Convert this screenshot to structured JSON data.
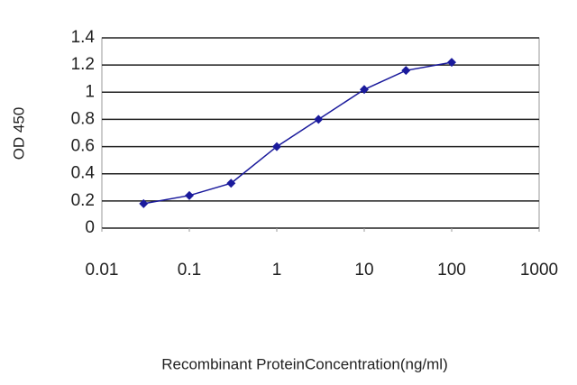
{
  "chart_data": {
    "type": "line",
    "x_label": "Recombinant ProteinConcentration(ng/ml)",
    "y_label": "OD 450",
    "xscale": "log",
    "grid": true,
    "x": [
      0.03,
      0.1,
      0.3,
      1,
      3,
      10,
      30,
      100
    ],
    "series": [
      {
        "color": "#1a1a9c",
        "values": [
          0.18,
          0.24,
          0.33,
          0.6,
          0.8,
          1.02,
          1.16,
          1.22
        ]
      }
    ],
    "xlim": [
      0.01,
      1000
    ],
    "xticks": [
      0.01,
      0.1,
      1,
      10,
      100,
      1000
    ],
    "ylim": [
      0,
      1.4
    ],
    "yticks": [
      0,
      0.2,
      0.4,
      0.6,
      0.8,
      1,
      1.2,
      1.4
    ]
  }
}
